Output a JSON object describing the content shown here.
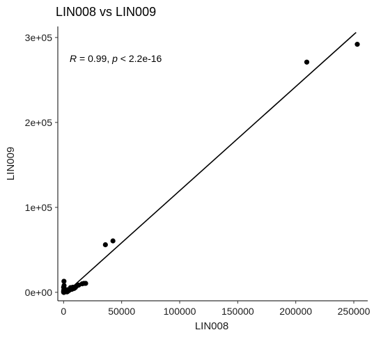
{
  "chart_data": {
    "type": "scatter",
    "title": "LIN008 vs LIN009",
    "xlabel": "LIN008",
    "ylabel": "LIN009",
    "xlim": [
      -5000,
      262000
    ],
    "ylim": [
      -10000,
      313000
    ],
    "x_ticks": [
      0,
      50000,
      100000,
      150000,
      200000,
      250000
    ],
    "x_tick_labels": [
      "0",
      "50000",
      "100000",
      "150000",
      "200000",
      "250000"
    ],
    "y_ticks": [
      0,
      100000,
      200000,
      300000
    ],
    "y_tick_labels": [
      "0e+00",
      "1e+05",
      "2e+05",
      "3e+05"
    ],
    "grid": false,
    "annotation": {
      "r_symbol": "R",
      "r_text": " = 0.99, ",
      "p_symbol": "p",
      "p_text": " < 2.2e-16"
    },
    "regression_line": {
      "x": [
        0,
        252000
      ],
      "y": [
        -3000,
        306000
      ]
    },
    "series": [
      {
        "points": [
          {
            "x": 253000,
            "y": 292000
          },
          {
            "x": 209500,
            "y": 271000
          },
          {
            "x": 42500,
            "y": 60500
          },
          {
            "x": 36000,
            "y": 56000
          },
          {
            "x": 19000,
            "y": 10500
          },
          {
            "x": 17500,
            "y": 10500
          },
          {
            "x": 16000,
            "y": 10000
          },
          {
            "x": 13000,
            "y": 8500
          },
          {
            "x": 11000,
            "y": 7000
          },
          {
            "x": 10000,
            "y": 5500
          },
          {
            "x": 9000,
            "y": 4500
          },
          {
            "x": 8000,
            "y": 6000
          },
          {
            "x": 7000,
            "y": 3500
          },
          {
            "x": 6000,
            "y": 5500
          },
          {
            "x": 5000,
            "y": 2500
          },
          {
            "x": 4000,
            "y": 1500
          },
          {
            "x": 3500,
            "y": 3000
          },
          {
            "x": 3000,
            "y": 500
          },
          {
            "x": 2500,
            "y": 2000
          },
          {
            "x": 2000,
            "y": 1000
          },
          {
            "x": 1500,
            "y": 2500
          },
          {
            "x": 1000,
            "y": 300
          },
          {
            "x": 700,
            "y": 1500
          },
          {
            "x": 500,
            "y": 4500
          },
          {
            "x": 400,
            "y": 8000
          },
          {
            "x": 300,
            "y": 13000
          },
          {
            "x": 200,
            "y": 500
          },
          {
            "x": 100,
            "y": 2500
          },
          {
            "x": 0,
            "y": 0
          },
          {
            "x": 0,
            "y": 1200
          },
          {
            "x": 0,
            "y": 6000
          }
        ]
      }
    ]
  }
}
